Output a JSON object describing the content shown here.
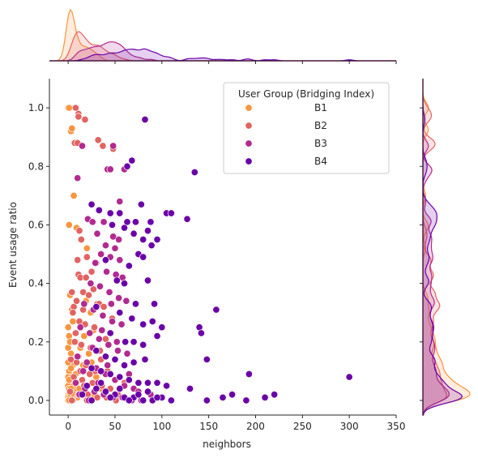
{
  "chart_data": {
    "type": "scatter",
    "title": "",
    "xlabel": "neighbors",
    "ylabel": "Event usage ratio",
    "xlim": [
      -20,
      350
    ],
    "ylim": [
      -0.05,
      1.1
    ],
    "xticks": [
      "0",
      "50",
      "100",
      "150",
      "200",
      "250",
      "300",
      "350"
    ],
    "xtick_values": [
      0,
      50,
      100,
      150,
      200,
      250,
      300,
      350
    ],
    "yticks": [
      "0.0",
      "0.2",
      "0.4",
      "0.6",
      "0.8",
      "1.0"
    ],
    "ytick_values": [
      0.0,
      0.2,
      0.4,
      0.6,
      0.8,
      1.0
    ],
    "grid": false,
    "marginals": "kde",
    "legend": {
      "title": "User Group (Bridging Index)",
      "placement": "top-right"
    },
    "series": [
      {
        "name": "B1",
        "color": "#f89540",
        "points": [
          [
            0,
            1.0
          ],
          [
            1,
            1.0
          ],
          [
            3,
            0.92
          ],
          [
            4,
            0.93
          ],
          [
            6,
            0.7
          ],
          [
            1,
            0.6
          ],
          [
            9,
            0.59
          ],
          [
            20,
            0.52
          ],
          [
            2,
            0.36
          ],
          [
            4,
            0.31
          ],
          [
            0,
            0.25
          ],
          [
            1,
            0.22
          ],
          [
            0,
            0.18
          ],
          [
            3,
            0.16
          ],
          [
            1,
            0.1
          ],
          [
            0,
            0.08
          ],
          [
            2,
            0.06
          ],
          [
            0,
            0.05
          ],
          [
            1,
            0.04
          ],
          [
            2,
            0.03
          ],
          [
            0,
            0.02
          ],
          [
            1,
            0.02
          ],
          [
            0,
            0.01
          ],
          [
            2,
            0.01
          ],
          [
            3,
            0.0
          ],
          [
            0,
            0.0
          ],
          [
            1,
            0.0
          ],
          [
            5,
            0.12
          ],
          [
            4,
            0.08
          ],
          [
            6,
            0.05
          ],
          [
            2,
            0.14
          ],
          [
            7,
            0.03
          ],
          [
            8,
            0.2
          ],
          [
            5,
            0.27
          ],
          [
            3,
            0.11
          ],
          [
            6,
            0.02
          ],
          [
            9,
            0.06
          ],
          [
            4,
            0.0
          ],
          [
            10,
            0.01
          ],
          [
            12,
            0.04
          ],
          [
            8,
            0.09
          ],
          [
            11,
            0.15
          ],
          [
            14,
            0.02
          ],
          [
            15,
            0.07
          ],
          [
            13,
            0.18
          ],
          [
            17,
            0.22
          ],
          [
            18,
            0.03
          ],
          [
            16,
            0.12
          ],
          [
            21,
            0.05
          ],
          [
            25,
            0.13
          ],
          [
            23,
            0.01
          ],
          [
            19,
            0.34
          ],
          [
            27,
            0.24
          ],
          [
            30,
            0.08
          ],
          [
            28,
            0.02
          ],
          [
            24,
            0.3
          ],
          [
            22,
            0.16
          ],
          [
            35,
            0.04
          ],
          [
            32,
            0.1
          ],
          [
            0,
            0.13
          ],
          [
            1,
            0.07
          ],
          [
            2,
            0.2
          ],
          [
            3,
            0.04
          ],
          [
            5,
            0.0
          ]
        ]
      },
      {
        "name": "B2",
        "color": "#e16462",
        "points": [
          [
            8,
            1.0
          ],
          [
            11,
            0.98
          ],
          [
            11,
            0.97
          ],
          [
            18,
            0.96
          ],
          [
            7,
            0.88
          ],
          [
            10,
            0.88
          ],
          [
            32,
            0.89
          ],
          [
            37,
            0.87
          ],
          [
            48,
            0.86
          ],
          [
            12,
            0.58
          ],
          [
            14,
            0.55
          ],
          [
            20,
            0.49
          ],
          [
            30,
            0.47
          ],
          [
            10,
            0.48
          ],
          [
            11,
            0.43
          ],
          [
            13,
            0.42
          ],
          [
            19,
            0.42
          ],
          [
            4,
            0.37
          ],
          [
            16,
            0.37
          ],
          [
            22,
            0.36
          ],
          [
            27,
            0.38
          ],
          [
            6,
            0.32
          ],
          [
            9,
            0.34
          ],
          [
            31,
            0.33
          ],
          [
            33,
            0.33
          ],
          [
            38,
            0.32
          ],
          [
            5,
            0.3
          ],
          [
            12,
            0.27
          ],
          [
            18,
            0.26
          ],
          [
            28,
            0.25
          ],
          [
            8,
            0.23
          ],
          [
            14,
            0.19
          ],
          [
            24,
            0.18
          ],
          [
            34,
            0.17
          ],
          [
            3,
            0.14
          ],
          [
            9,
            0.13
          ],
          [
            19,
            0.12
          ],
          [
            29,
            0.1
          ],
          [
            42,
            0.1
          ],
          [
            6,
            0.08
          ],
          [
            15,
            0.07
          ],
          [
            26,
            0.06
          ],
          [
            36,
            0.05
          ],
          [
            45,
            0.04
          ],
          [
            2,
            0.03
          ],
          [
            11,
            0.02
          ],
          [
            21,
            0.02
          ],
          [
            31,
            0.01
          ],
          [
            41,
            0.01
          ],
          [
            51,
            0.0
          ],
          [
            4,
            0.0
          ],
          [
            17,
            0.05
          ],
          [
            23,
            0.09
          ],
          [
            35,
            0.14
          ],
          [
            40,
            0.21
          ],
          [
            47,
            0.28
          ],
          [
            53,
            0.02
          ],
          [
            60,
            0.06
          ],
          [
            25,
            0.44
          ],
          [
            16,
            0.31
          ],
          [
            7,
            0.2
          ],
          [
            13,
            0.1
          ],
          [
            20,
            0.0
          ]
        ]
      },
      {
        "name": "B3",
        "color": "#b12a90",
        "points": [
          [
            15,
            0.87
          ],
          [
            48,
            0.87
          ],
          [
            10,
            0.76
          ],
          [
            42,
            0.79
          ],
          [
            45,
            0.79
          ],
          [
            60,
            0.79
          ],
          [
            55,
            0.68
          ],
          [
            21,
            0.62
          ],
          [
            26,
            0.61
          ],
          [
            38,
            0.61
          ],
          [
            31,
            0.57
          ],
          [
            48,
            0.56
          ],
          [
            54,
            0.55
          ],
          [
            40,
            0.53
          ],
          [
            50,
            0.52
          ],
          [
            35,
            0.5
          ],
          [
            45,
            0.49
          ],
          [
            55,
            0.48
          ],
          [
            29,
            0.47
          ],
          [
            41,
            0.44
          ],
          [
            51,
            0.43
          ],
          [
            58,
            0.42
          ],
          [
            24,
            0.4
          ],
          [
            34,
            0.39
          ],
          [
            44,
            0.37
          ],
          [
            54,
            0.35
          ],
          [
            62,
            0.34
          ],
          [
            17,
            0.33
          ],
          [
            27,
            0.31
          ],
          [
            37,
            0.29
          ],
          [
            47,
            0.27
          ],
          [
            57,
            0.26
          ],
          [
            13,
            0.25
          ],
          [
            23,
            0.23
          ],
          [
            33,
            0.21
          ],
          [
            43,
            0.19
          ],
          [
            53,
            0.17
          ],
          [
            63,
            0.16
          ],
          [
            10,
            0.15
          ],
          [
            20,
            0.13
          ],
          [
            30,
            0.11
          ],
          [
            40,
            0.09
          ],
          [
            50,
            0.07
          ],
          [
            60,
            0.05
          ],
          [
            70,
            0.04
          ],
          [
            8,
            0.06
          ],
          [
            18,
            0.04
          ],
          [
            28,
            0.03
          ],
          [
            38,
            0.02
          ],
          [
            48,
            0.01
          ],
          [
            58,
            0.01
          ],
          [
            68,
            0.0
          ],
          [
            78,
            0.0
          ],
          [
            88,
            0.02
          ],
          [
            12,
            0.02
          ],
          [
            22,
            0.0
          ],
          [
            32,
            0.06
          ],
          [
            42,
            0.12
          ],
          [
            52,
            0.2
          ],
          [
            65,
            0.09
          ],
          [
            75,
            0.03
          ],
          [
            16,
            0.1
          ],
          [
            26,
            0.18
          ],
          [
            36,
            0.24
          ],
          [
            46,
            0.33
          ]
        ]
      },
      {
        "name": "B4",
        "color": "#6a00a8",
        "points": [
          [
            82,
            0.96
          ],
          [
            63,
            0.8
          ],
          [
            68,
            0.82
          ],
          [
            135,
            0.78
          ],
          [
            25,
            0.67
          ],
          [
            33,
            0.65
          ],
          [
            45,
            0.64
          ],
          [
            55,
            0.64
          ],
          [
            63,
            0.61
          ],
          [
            72,
            0.61
          ],
          [
            78,
            0.67
          ],
          [
            88,
            0.61
          ],
          [
            105,
            0.64
          ],
          [
            110,
            0.64
          ],
          [
            127,
            0.62
          ],
          [
            47,
            0.6
          ],
          [
            60,
            0.59
          ],
          [
            85,
            0.58
          ],
          [
            70,
            0.57
          ],
          [
            95,
            0.55
          ],
          [
            80,
            0.55
          ],
          [
            89,
            0.53
          ],
          [
            75,
            0.5
          ],
          [
            80,
            0.49
          ],
          [
            40,
            0.48
          ],
          [
            65,
            0.46
          ],
          [
            85,
            0.41
          ],
          [
            52,
            0.41
          ],
          [
            60,
            0.4
          ],
          [
            72,
            0.33
          ],
          [
            92,
            0.33
          ],
          [
            158,
            0.31
          ],
          [
            30,
            0.32
          ],
          [
            55,
            0.3
          ],
          [
            68,
            0.28
          ],
          [
            90,
            0.27
          ],
          [
            80,
            0.26
          ],
          [
            100,
            0.25
          ],
          [
            140,
            0.25
          ],
          [
            142,
            0.23
          ],
          [
            45,
            0.23
          ],
          [
            61,
            0.2
          ],
          [
            70,
            0.2
          ],
          [
            80,
            0.19
          ],
          [
            95,
            0.22
          ],
          [
            30,
            0.17
          ],
          [
            40,
            0.15
          ],
          [
            50,
            0.14
          ],
          [
            60,
            0.12
          ],
          [
            70,
            0.13
          ],
          [
            82,
            0.14
          ],
          [
            148,
            0.14
          ],
          [
            25,
            0.11
          ],
          [
            35,
            0.1
          ],
          [
            45,
            0.09
          ],
          [
            55,
            0.08
          ],
          [
            65,
            0.07
          ],
          [
            75,
            0.06
          ],
          [
            85,
            0.06
          ],
          [
            95,
            0.06
          ],
          [
            105,
            0.05
          ],
          [
            130,
            0.04
          ],
          [
            193,
            0.09
          ],
          [
            300,
            0.08
          ],
          [
            20,
            0.05
          ],
          [
            30,
            0.04
          ],
          [
            40,
            0.03
          ],
          [
            50,
            0.02
          ],
          [
            60,
            0.01
          ],
          [
            70,
            0.01
          ],
          [
            80,
            0.0
          ],
          [
            90,
            0.0
          ],
          [
            100,
            0.01
          ],
          [
            110,
            0.0
          ],
          [
            165,
            0.01
          ],
          [
            175,
            0.02
          ],
          [
            190,
            0.0
          ],
          [
            210,
            0.01
          ],
          [
            220,
            0.02
          ],
          [
            148,
            0.0
          ],
          [
            15,
            0.02
          ],
          [
            25,
            0.0
          ],
          [
            35,
            0.06
          ],
          [
            45,
            0.01
          ],
          [
            55,
            0.04
          ],
          [
            65,
            0.0
          ],
          [
            75,
            0.02
          ],
          [
            85,
            0.03
          ],
          [
            95,
            0.01
          ]
        ]
      }
    ]
  }
}
